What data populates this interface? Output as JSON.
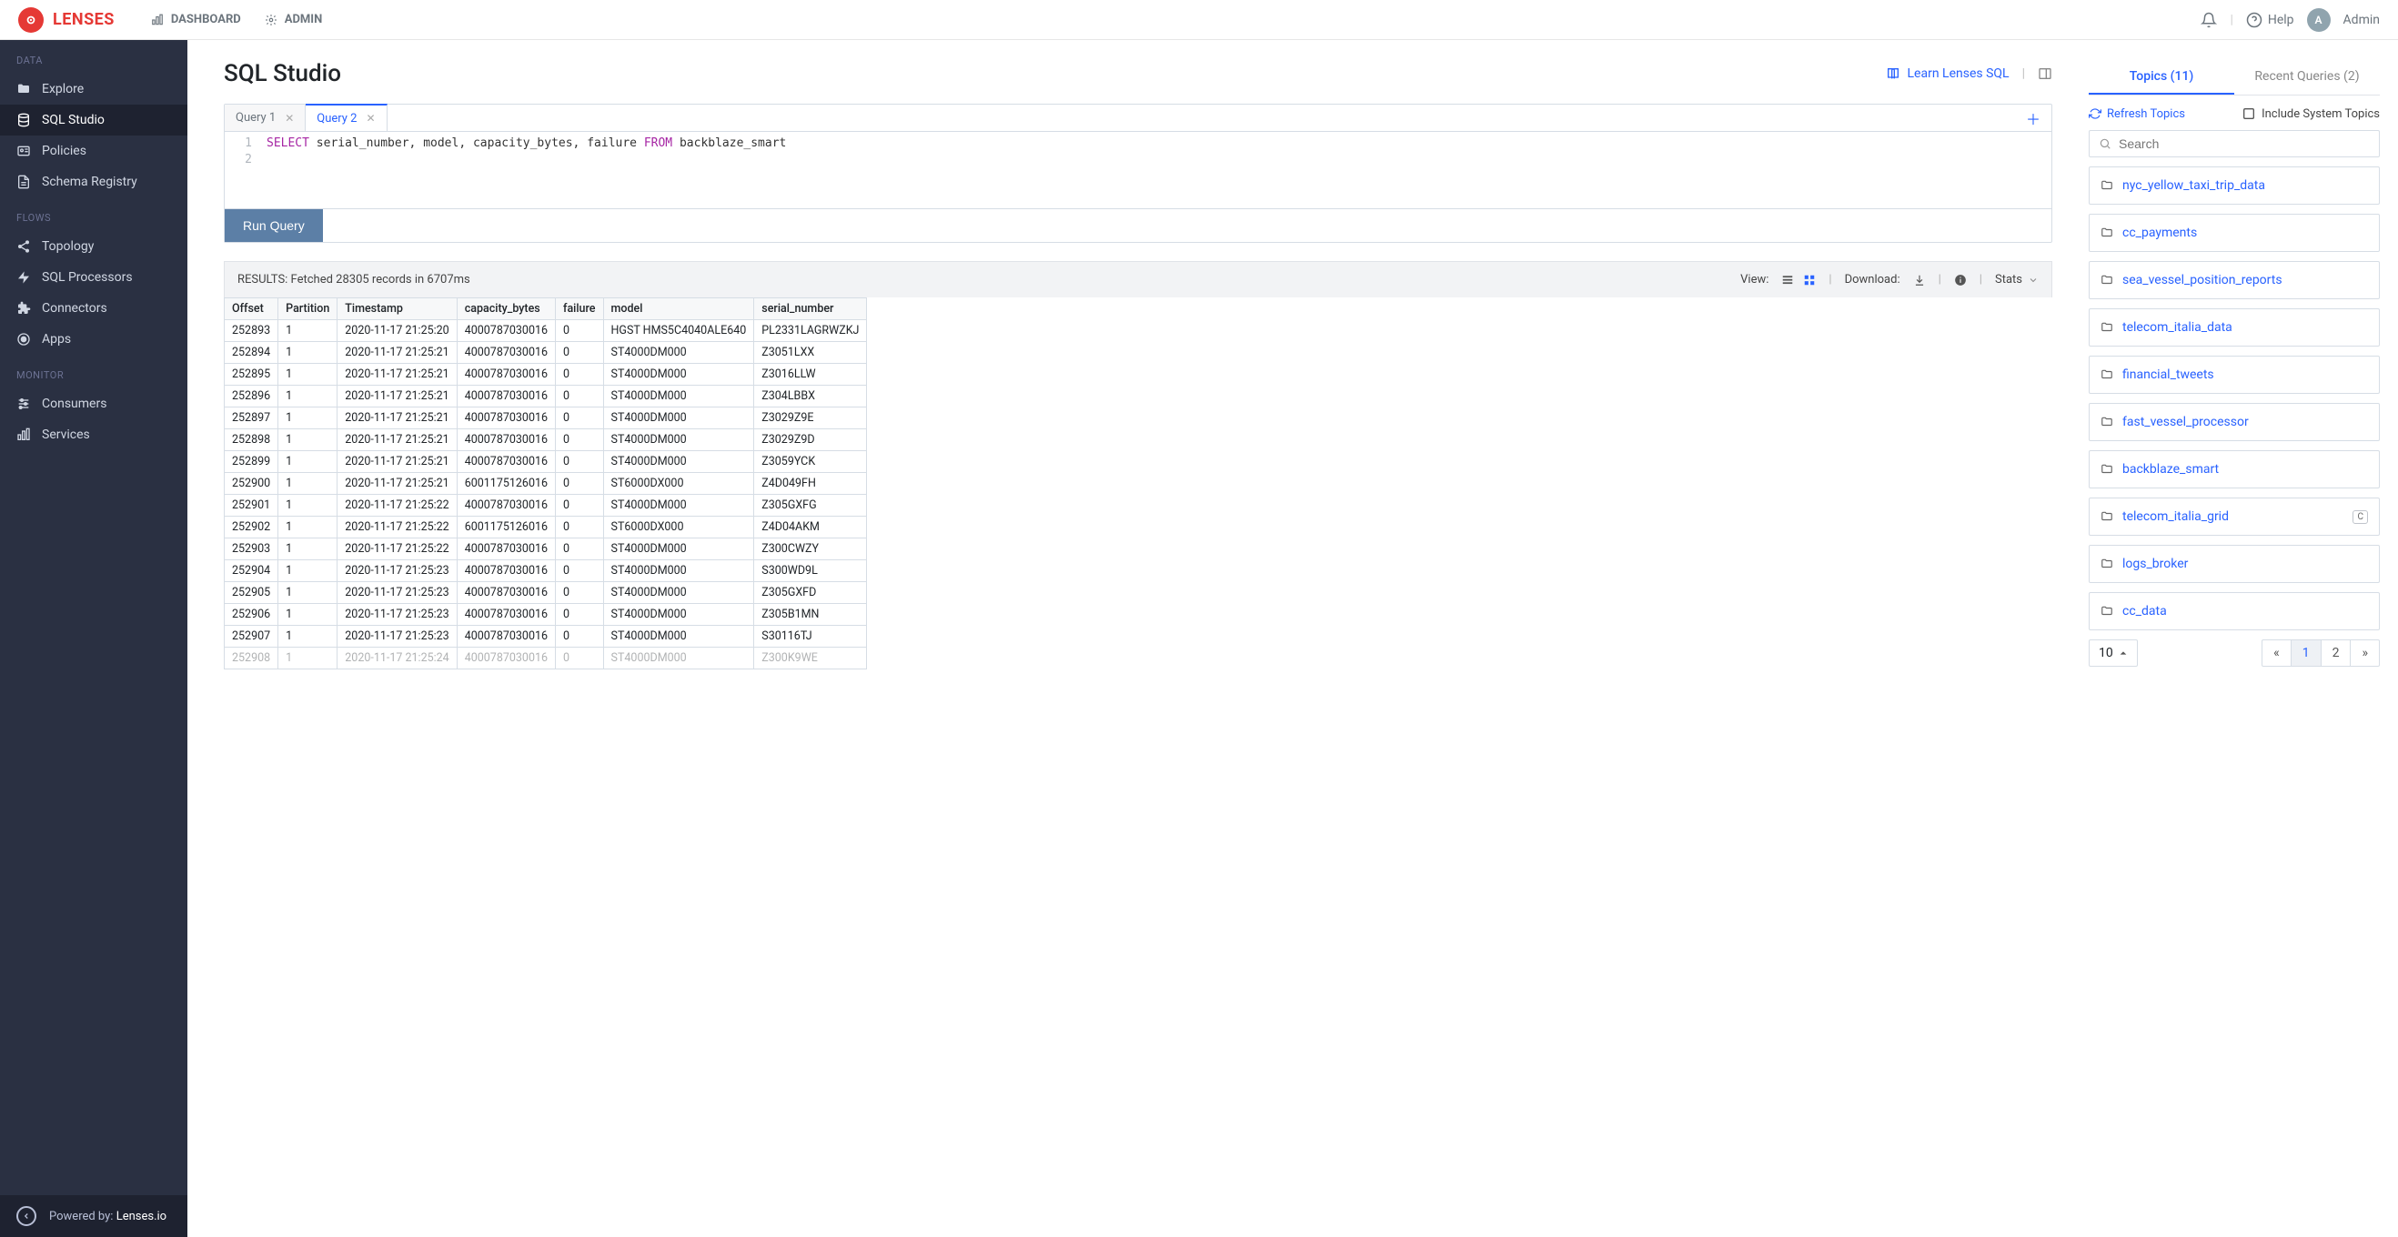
{
  "brand": "LENSES",
  "top_nav": {
    "dashboard": "DASHBOARD",
    "admin": "ADMIN"
  },
  "top_right": {
    "help": "Help",
    "avatar_initial": "A",
    "username": "Admin"
  },
  "sidebar": {
    "sections": {
      "data": {
        "title": "DATA",
        "items": [
          {
            "label": "Explore"
          },
          {
            "label": "SQL Studio",
            "active": true
          },
          {
            "label": "Policies"
          },
          {
            "label": "Schema Registry"
          }
        ]
      },
      "flows": {
        "title": "FLOWS",
        "items": [
          {
            "label": "Topology"
          },
          {
            "label": "SQL Processors"
          },
          {
            "label": "Connectors"
          },
          {
            "label": "Apps"
          }
        ]
      },
      "monitor": {
        "title": "MONITOR",
        "items": [
          {
            "label": "Consumers"
          },
          {
            "label": "Services"
          }
        ]
      }
    },
    "footer": {
      "prefix": "Powered by: ",
      "link": "Lenses.io"
    }
  },
  "page": {
    "title": "SQL Studio",
    "learn_label": "Learn Lenses SQL"
  },
  "editor": {
    "tabs": [
      {
        "label": "Query 1",
        "active": false
      },
      {
        "label": "Query 2",
        "active": true
      }
    ],
    "lines": [
      "1",
      "2"
    ],
    "sql": {
      "select": "SELECT",
      "cols": " serial_number, model, capacity_bytes, failure ",
      "from": "FROM",
      "table": " backblaze_smart"
    },
    "run_label": "Run Query"
  },
  "results": {
    "summary": "RESULTS: Fetched 28305 records in 6707ms",
    "view_label": "View:",
    "download_label": "Download:",
    "stats_label": "Stats",
    "columns": [
      "Offset",
      "Partition",
      "Timestamp",
      "capacity_bytes",
      "failure",
      "model",
      "serial_number"
    ],
    "rows": [
      [
        "252893",
        "1",
        "2020-11-17 21:25:20",
        "4000787030016",
        "0",
        "HGST HMS5C4040ALE640",
        "PL2331LAGRWZKJ"
      ],
      [
        "252894",
        "1",
        "2020-11-17 21:25:21",
        "4000787030016",
        "0",
        "ST4000DM000",
        "Z3051LXX"
      ],
      [
        "252895",
        "1",
        "2020-11-17 21:25:21",
        "4000787030016",
        "0",
        "ST4000DM000",
        "Z3016LLW"
      ],
      [
        "252896",
        "1",
        "2020-11-17 21:25:21",
        "4000787030016",
        "0",
        "ST4000DM000",
        "Z304LBBX"
      ],
      [
        "252897",
        "1",
        "2020-11-17 21:25:21",
        "4000787030016",
        "0",
        "ST4000DM000",
        "Z3029Z9E"
      ],
      [
        "252898",
        "1",
        "2020-11-17 21:25:21",
        "4000787030016",
        "0",
        "ST4000DM000",
        "Z3029Z9D"
      ],
      [
        "252899",
        "1",
        "2020-11-17 21:25:21",
        "4000787030016",
        "0",
        "ST4000DM000",
        "Z3059YCK"
      ],
      [
        "252900",
        "1",
        "2020-11-17 21:25:21",
        "6001175126016",
        "0",
        "ST6000DX000",
        "Z4D049FH"
      ],
      [
        "252901",
        "1",
        "2020-11-17 21:25:22",
        "4000787030016",
        "0",
        "ST4000DM000",
        "Z305GXFG"
      ],
      [
        "252902",
        "1",
        "2020-11-17 21:25:22",
        "6001175126016",
        "0",
        "ST6000DX000",
        "Z4D04AKM"
      ],
      [
        "252903",
        "1",
        "2020-11-17 21:25:22",
        "4000787030016",
        "0",
        "ST4000DM000",
        "Z300CWZY"
      ],
      [
        "252904",
        "1",
        "2020-11-17 21:25:23",
        "4000787030016",
        "0",
        "ST4000DM000",
        "S300WD9L"
      ],
      [
        "252905",
        "1",
        "2020-11-17 21:25:23",
        "4000787030016",
        "0",
        "ST4000DM000",
        "Z305GXFD"
      ],
      [
        "252906",
        "1",
        "2020-11-17 21:25:23",
        "4000787030016",
        "0",
        "ST4000DM000",
        "Z305B1MN"
      ],
      [
        "252907",
        "1",
        "2020-11-17 21:25:23",
        "4000787030016",
        "0",
        "ST4000DM000",
        "S30116TJ"
      ],
      [
        "252908",
        "1",
        "2020-11-17 21:25:24",
        "4000787030016",
        "0",
        "ST4000DM000",
        "Z300K9WE"
      ]
    ]
  },
  "right": {
    "tabs": {
      "topics": "Topics (11)",
      "recent": "Recent Queries (2)"
    },
    "refresh": "Refresh Topics",
    "include_sys": "Include System Topics",
    "search_placeholder": "Search",
    "topics": [
      {
        "name": "nyc_yellow_taxi_trip_data"
      },
      {
        "name": "cc_payments"
      },
      {
        "name": "sea_vessel_position_reports"
      },
      {
        "name": "telecom_italia_data"
      },
      {
        "name": "financial_tweets"
      },
      {
        "name": "fast_vessel_processor"
      },
      {
        "name": "backblaze_smart"
      },
      {
        "name": "telecom_italia_grid",
        "badge": "C"
      },
      {
        "name": "logs_broker"
      },
      {
        "name": "cc_data"
      }
    ],
    "page_size": "10",
    "pages": [
      "«",
      "1",
      "2",
      "»"
    ],
    "active_page": "1"
  }
}
